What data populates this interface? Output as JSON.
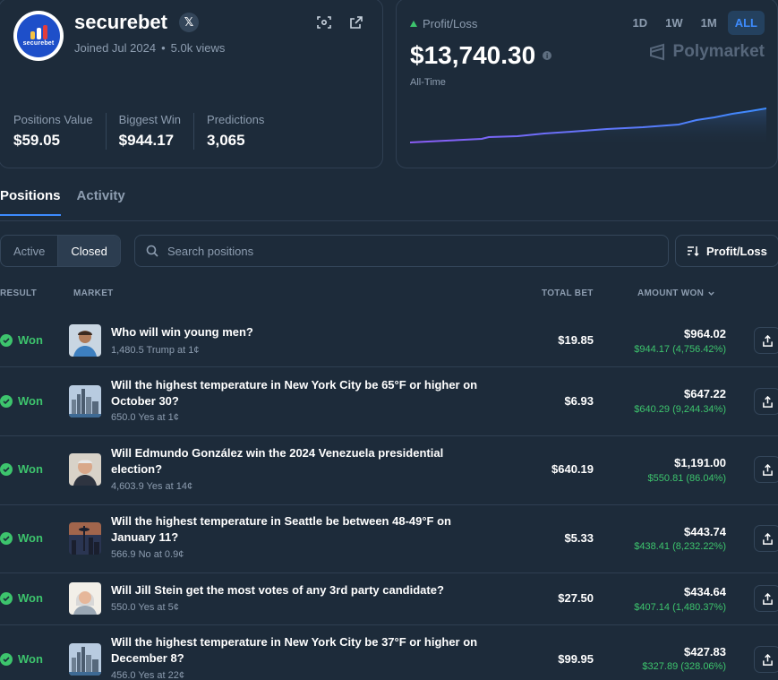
{
  "profile": {
    "username": "securebet",
    "avatar_text": "securebet",
    "x_label": "𝕏",
    "joined": "Joined Jul 2024",
    "views": "5.0k views",
    "dot": "•",
    "icons": [
      "scan-icon",
      "external-link-icon"
    ],
    "stats": [
      {
        "label": "Positions Value",
        "value": "$59.05"
      },
      {
        "label": "Biggest Win",
        "value": "$944.17"
      },
      {
        "label": "Predictions",
        "value": "3,065"
      }
    ]
  },
  "pnl": {
    "label": "Profit/Loss",
    "value": "$13,740.30",
    "info": "i",
    "period": "All-Time",
    "ranges": [
      "1D",
      "1W",
      "1M",
      "ALL"
    ],
    "active_range": "ALL",
    "brand": "Polymarket",
    "colors": {
      "line_start": "#8b5cf6",
      "line_end": "#3d8bfd",
      "up": "#3dc46d"
    }
  },
  "tabs": [
    {
      "label": "Positions",
      "active": true
    },
    {
      "label": "Activity",
      "active": false
    }
  ],
  "filters": {
    "segments": [
      {
        "label": "Active",
        "active": false
      },
      {
        "label": "Closed",
        "active": true
      }
    ],
    "search_placeholder": "Search positions",
    "sort_label": "Profit/Loss"
  },
  "table": {
    "headers": {
      "result": "RESULT",
      "market": "MARKET",
      "total_bet": "TOTAL BET",
      "amount_won": "AMOUNT WON"
    },
    "rows": [
      {
        "result": "Won",
        "title": "Who will win young men?",
        "sub": "1,480.5 Trump at 1¢",
        "total_bet": "$19.85",
        "amount": "$964.02",
        "gain": "$944.17 (4,756.42%)",
        "thumb": "person-photo"
      },
      {
        "result": "Won",
        "title": "Will the highest temperature in New York City be 65°F or higher on October 30?",
        "sub": "650.0 Yes at 1¢",
        "total_bet": "$6.93",
        "amount": "$647.22",
        "gain": "$640.29 (9,244.34%)",
        "thumb": "nyc-skyline"
      },
      {
        "result": "Won",
        "title": "Will Edmundo González win the 2024 Venezuela presidential election?",
        "sub": "4,603.9 Yes at 14¢",
        "total_bet": "$640.19",
        "amount": "$1,191.00",
        "gain": "$550.81 (86.04%)",
        "thumb": "person-photo"
      },
      {
        "result": "Won",
        "title": "Will the highest temperature in Seattle be between 48-49°F on January 11?",
        "sub": "566.9 No at 0.9¢",
        "total_bet": "$5.33",
        "amount": "$443.74",
        "gain": "$438.41 (8,232.22%)",
        "thumb": "seattle-skyline"
      },
      {
        "result": "Won",
        "title": "Will Jill Stein get the most votes of any 3rd party candidate?",
        "sub": "550.0 Yes at 5¢",
        "total_bet": "$27.50",
        "amount": "$434.64",
        "gain": "$407.14 (1,480.37%)",
        "thumb": "person-photo"
      },
      {
        "result": "Won",
        "title": "Will the highest temperature in New York City be 37°F or higher on December 8?",
        "sub": "456.0 Yes at 22¢",
        "total_bet": "$99.95",
        "amount": "$427.83",
        "gain": "$327.89 (328.06%)",
        "thumb": "nyc-skyline"
      }
    ]
  }
}
